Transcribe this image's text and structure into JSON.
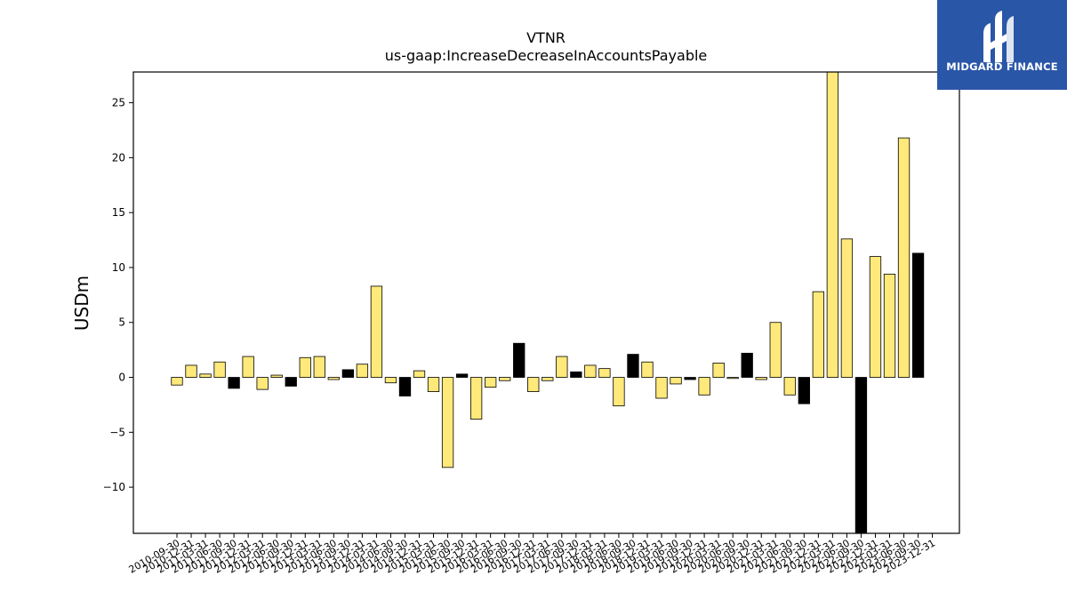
{
  "chart_data": {
    "type": "bar",
    "title": "VTNR",
    "subtitle": "us-gaap:IncreaseDecreaseInAccountsPayable",
    "xlabel": "",
    "ylabel": "USDm",
    "ylim": [
      -14.2,
      27.8
    ],
    "yticks": [
      -10,
      -5,
      0,
      5,
      10,
      15,
      20,
      25
    ],
    "ytick_labels": [
      "−10",
      "−5",
      "0",
      "5",
      "10",
      "15",
      "20",
      "25"
    ],
    "grid": false,
    "colors": {
      "quarterly": "#ffe97a",
      "annual": "#000000",
      "edge": "#000000"
    },
    "categories": [
      "2010-09-30",
      "2010-12-31",
      "2011-03-31",
      "2011-06-30",
      "2011-09-30",
      "2011-12-31",
      "2012-03-31",
      "2012-06-30",
      "2012-09-30",
      "2012-12-31",
      "2013-03-31",
      "2013-06-30",
      "2013-09-30",
      "2013-12-31",
      "2014-03-31",
      "2014-06-30",
      "2014-09-30",
      "2014-12-31",
      "2015-03-31",
      "2015-06-30",
      "2015-09-30",
      "2015-12-31",
      "2016-03-31",
      "2016-06-30",
      "2016-09-30",
      "2016-12-31",
      "2017-03-31",
      "2017-06-30",
      "2017-09-30",
      "2017-12-31",
      "2018-03-31",
      "2018-06-30",
      "2018-09-30",
      "2018-12-31",
      "2019-03-31",
      "2019-06-30",
      "2019-09-30",
      "2019-12-31",
      "2020-03-31",
      "2020-06-30",
      "2020-09-30",
      "2020-12-31",
      "2021-03-31",
      "2021-06-30",
      "2021-09-30",
      "2021-12-31",
      "2022-03-31",
      "2022-06-30",
      "2022-09-30",
      "2022-12-31",
      "2023-03-31",
      "2023-06-30",
      "2023-09-30",
      "2023-12-31"
    ],
    "values": [
      -0.7,
      1.1,
      0.3,
      1.4,
      -1.0,
      1.9,
      -1.1,
      0.2,
      -0.8,
      1.8,
      1.9,
      -0.2,
      0.7,
      1.2,
      8.3,
      -0.5,
      -1.7,
      0.6,
      -1.3,
      -8.2,
      0.3,
      -3.8,
      -0.9,
      -0.3,
      3.1,
      -1.3,
      -0.3,
      1.9,
      0.5,
      1.1,
      0.8,
      -2.6,
      2.1,
      1.4,
      -1.9,
      -0.6,
      -0.2,
      -1.6,
      1.3,
      -0.1,
      2.2,
      -0.2,
      5.0,
      -1.6,
      -2.4,
      7.8,
      28.0,
      12.6,
      -14.5,
      11.0,
      9.4,
      21.8,
      11.3,
      0
    ],
    "annual": [
      false,
      false,
      false,
      false,
      true,
      false,
      false,
      false,
      true,
      false,
      false,
      false,
      true,
      false,
      false,
      false,
      true,
      false,
      false,
      false,
      true,
      false,
      false,
      false,
      true,
      false,
      false,
      false,
      true,
      false,
      false,
      false,
      true,
      false,
      false,
      false,
      true,
      false,
      false,
      false,
      true,
      false,
      false,
      false,
      true,
      false,
      false,
      false,
      true,
      false,
      false,
      false,
      true,
      false
    ]
  },
  "logo": {
    "text": "MIDGARD FINANCE"
  }
}
